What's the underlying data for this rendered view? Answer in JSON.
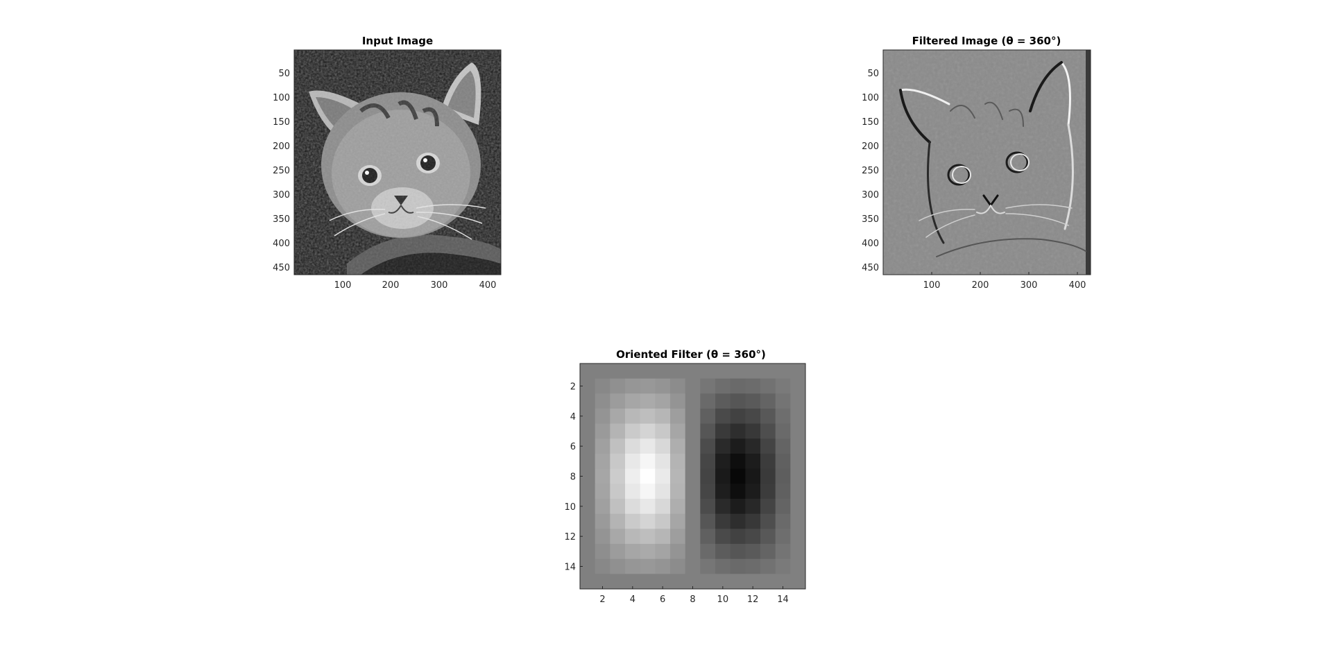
{
  "colors": {
    "background": "#ffffff",
    "axis": "#262626"
  },
  "panels": {
    "input_image": {
      "title": "Input Image",
      "xticks": [
        "100",
        "200",
        "300",
        "400"
      ],
      "yticks": [
        "50",
        "100",
        "150",
        "200",
        "250",
        "300",
        "350",
        "400",
        "450"
      ],
      "image_icon": "kitten-grayscale-photo"
    },
    "filtered_image": {
      "title": "Filtered Image (θ = 360°)",
      "xticks": [
        "100",
        "200",
        "300",
        "400"
      ],
      "yticks": [
        "50",
        "100",
        "150",
        "200",
        "250",
        "300",
        "350",
        "400",
        "450"
      ],
      "image_icon": "kitten-edge-response"
    }
  },
  "chart_data": [
    {
      "type": "heatmap",
      "title": "Oriented Filter (θ = 360°)",
      "colormap": "gray",
      "xlim": [
        0.5,
        15.5
      ],
      "ylim": [
        0.5,
        15.5
      ],
      "xticks": [
        2,
        4,
        6,
        8,
        10,
        12,
        14
      ],
      "yticks": [
        2,
        4,
        6,
        8,
        10,
        12,
        14
      ],
      "rows": 15,
      "cols": 15,
      "values": [
        [
          128,
          128,
          128,
          128,
          128,
          128,
          128,
          128,
          128,
          128,
          128,
          128,
          128,
          128,
          128
        ],
        [
          128,
          136,
          144,
          150,
          152,
          148,
          140,
          128,
          118,
          110,
          106,
          108,
          114,
          122,
          128
        ],
        [
          128,
          142,
          156,
          166,
          170,
          164,
          148,
          128,
          106,
          92,
          86,
          90,
          100,
          116,
          128
        ],
        [
          128,
          148,
          168,
          184,
          190,
          182,
          158,
          128,
          96,
          74,
          66,
          72,
          88,
          110,
          128
        ],
        [
          128,
          154,
          180,
          202,
          212,
          200,
          166,
          128,
          86,
          58,
          46,
          56,
          78,
          106,
          128
        ],
        [
          128,
          160,
          192,
          220,
          232,
          216,
          174,
          128,
          76,
          42,
          28,
          40,
          68,
          100,
          128
        ],
        [
          128,
          164,
          200,
          232,
          246,
          228,
          180,
          128,
          70,
          30,
          14,
          28,
          60,
          96,
          128
        ],
        [
          128,
          166,
          204,
          238,
          254,
          234,
          182,
          128,
          68,
          26,
          8,
          24,
          58,
          94,
          128
        ],
        [
          128,
          164,
          200,
          232,
          246,
          228,
          180,
          128,
          70,
          30,
          14,
          28,
          60,
          96,
          128
        ],
        [
          128,
          160,
          192,
          220,
          232,
          216,
          174,
          128,
          76,
          42,
          28,
          40,
          68,
          100,
          128
        ],
        [
          128,
          154,
          180,
          202,
          212,
          200,
          166,
          128,
          86,
          58,
          46,
          56,
          78,
          106,
          128
        ],
        [
          128,
          148,
          168,
          184,
          190,
          182,
          158,
          128,
          96,
          74,
          66,
          72,
          88,
          110,
          128
        ],
        [
          128,
          142,
          156,
          166,
          170,
          164,
          148,
          128,
          106,
          92,
          86,
          90,
          100,
          116,
          128
        ],
        [
          128,
          136,
          144,
          150,
          152,
          148,
          140,
          128,
          118,
          110,
          106,
          108,
          114,
          122,
          128
        ],
        [
          128,
          128,
          128,
          128,
          128,
          128,
          128,
          128,
          128,
          128,
          128,
          128,
          128,
          128,
          128
        ]
      ]
    }
  ]
}
